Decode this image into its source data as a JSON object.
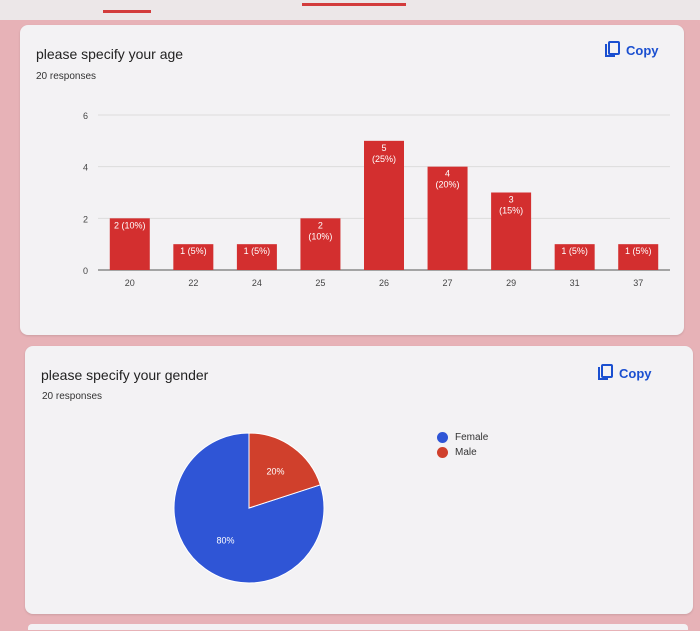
{
  "age_card": {
    "title": "please specify your age",
    "responses": "20 responses",
    "copy_label": "Copy"
  },
  "gender_card": {
    "title": "please specify your gender",
    "responses": "20 responses",
    "copy_label": "Copy"
  },
  "colors": {
    "bar": "#d32f2f",
    "female": "#2f55d6",
    "male": "#d0402c",
    "copy": "#1a4fd0"
  },
  "chart_data": [
    {
      "type": "bar",
      "categories": [
        "20",
        "22",
        "24",
        "25",
        "26",
        "27",
        "29",
        "31",
        "37"
      ],
      "values": [
        2,
        1,
        1,
        2,
        5,
        4,
        3,
        1,
        1
      ],
      "data_labels": [
        "2 (10%)",
        "1 (5%)",
        "1 (5%)",
        "2 (10%)",
        "5 (25%)",
        "4 (20%)",
        "3 (15%)",
        "1 (5%)",
        "1 (5%)"
      ],
      "yticks": [
        "0",
        "2",
        "4",
        "6"
      ],
      "ylim": [
        0,
        6
      ],
      "grid": true
    },
    {
      "type": "pie",
      "labels": [
        "Female",
        "Male"
      ],
      "values": [
        80,
        20
      ],
      "slice_labels": [
        "80%",
        "20%"
      ],
      "legend": "right"
    }
  ]
}
